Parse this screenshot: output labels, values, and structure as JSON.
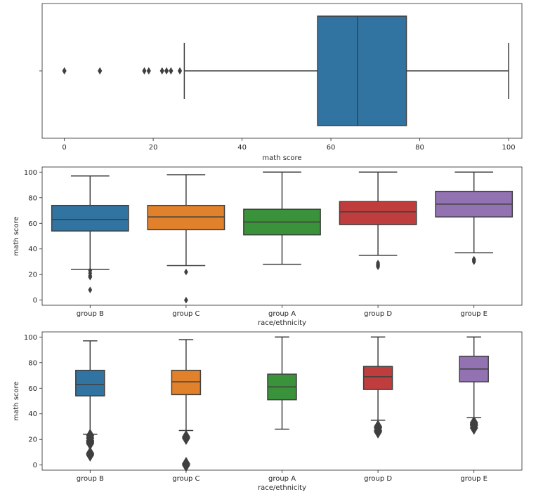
{
  "chart_data": [
    {
      "type": "boxplot",
      "orientation": "horizontal",
      "xlabel": "math score",
      "ylabel": "",
      "xlim": [
        -5,
        103
      ],
      "xticks": [
        0,
        20,
        40,
        60,
        80,
        100
      ],
      "boxes": [
        {
          "category": "",
          "color": "#3274a1",
          "whisker_low": 27,
          "q1": 57,
          "median": 66,
          "q3": 77,
          "whisker_high": 100,
          "fliers": [
            0,
            8,
            18,
            19,
            22,
            23,
            24,
            26
          ]
        }
      ]
    },
    {
      "type": "boxplot",
      "orientation": "vertical",
      "xlabel": "race/ethnicity",
      "ylabel": "math score",
      "ylim": [
        -4,
        104
      ],
      "yticks": [
        0,
        20,
        40,
        60,
        80,
        100
      ],
      "box_width": 0.8,
      "flier_size": 4,
      "boxes": [
        {
          "category": "group B",
          "color": "#3274a1",
          "whisker_low": 24,
          "q1": 54,
          "median": 63,
          "q3": 74,
          "whisker_high": 97,
          "fliers": [
            8,
            18,
            19,
            21,
            23
          ]
        },
        {
          "category": "group C",
          "color": "#e1812c",
          "whisker_low": 27,
          "q1": 55,
          "median": 65,
          "q3": 74,
          "whisker_high": 98,
          "fliers": [
            0,
            22
          ]
        },
        {
          "category": "group A",
          "color": "#3a923a",
          "whisker_low": 28,
          "q1": 51,
          "median": 61,
          "q3": 71,
          "whisker_high": 100,
          "fliers": []
        },
        {
          "category": "group D",
          "color": "#c03d3e",
          "whisker_low": 35,
          "q1": 59,
          "median": 69,
          "q3": 77,
          "whisker_high": 100,
          "fliers": [
            26,
            27,
            28,
            29
          ]
        },
        {
          "category": "group E",
          "color": "#9372b2",
          "whisker_low": 37,
          "q1": 65,
          "median": 75,
          "q3": 85,
          "whisker_high": 100,
          "fliers": [
            30,
            31,
            32
          ]
        }
      ]
    },
    {
      "type": "boxplot",
      "orientation": "vertical",
      "xlabel": "race/ethnicity",
      "ylabel": "math score",
      "ylim": [
        -4,
        104
      ],
      "yticks": [
        0,
        20,
        40,
        60,
        80,
        100
      ],
      "box_width": 0.3,
      "flier_size": 9,
      "boxes": [
        {
          "category": "group B",
          "color": "#3274a1",
          "whisker_low": 24,
          "q1": 54,
          "median": 63,
          "q3": 74,
          "whisker_high": 97,
          "fliers": [
            8,
            9,
            17,
            18,
            19,
            21,
            23
          ]
        },
        {
          "category": "group C",
          "color": "#e1812c",
          "whisker_low": 27,
          "q1": 55,
          "median": 65,
          "q3": 74,
          "whisker_high": 98,
          "fliers": [
            0,
            1,
            21,
            22
          ]
        },
        {
          "category": "group A",
          "color": "#3a923a",
          "whisker_low": 28,
          "q1": 51,
          "median": 61,
          "q3": 71,
          "whisker_high": 100,
          "fliers": []
        },
        {
          "category": "group D",
          "color": "#c03d3e",
          "whisker_low": 35,
          "q1": 59,
          "median": 69,
          "q3": 77,
          "whisker_high": 100,
          "fliers": [
            26,
            27,
            29,
            30
          ]
        },
        {
          "category": "group E",
          "color": "#9372b2",
          "whisker_low": 37,
          "q1": 65,
          "median": 75,
          "q3": 85,
          "whisker_high": 100,
          "fliers": [
            29,
            31,
            32,
            33
          ]
        }
      ]
    }
  ]
}
